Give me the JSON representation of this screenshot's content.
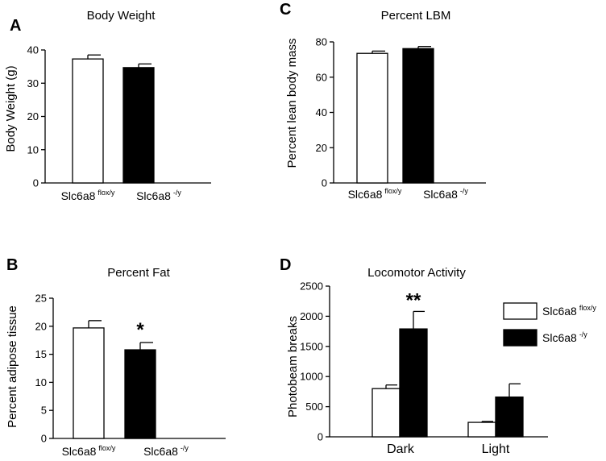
{
  "chart_data": [
    {
      "panel": "A",
      "type": "bar",
      "title": "Body Weight",
      "ylabel": "Body Weight (g)",
      "ylim": [
        0,
        40
      ],
      "yticks": [
        "0",
        "10",
        "20",
        "30",
        "40"
      ],
      "categories": [
        {
          "base": "Slc6a8",
          "sup": "flox/y"
        },
        {
          "base": "Slc6a8",
          "sup": "-/y"
        }
      ],
      "values": [
        37.3,
        34.7
      ],
      "errors": [
        1.2,
        1.1
      ],
      "fills": [
        "#ffffff",
        "#000000"
      ],
      "annotations": [
        "",
        ""
      ]
    },
    {
      "panel": "C",
      "type": "bar",
      "title": "Percent LBM",
      "ylabel": "Percent lean body mass",
      "ylim": [
        0,
        80
      ],
      "yticks": [
        "0",
        "20",
        "40",
        "60",
        "80"
      ],
      "categories": [
        {
          "base": "Slc6a8",
          "sup": "flox/y"
        },
        {
          "base": "Slc6a8",
          "sup": "-/y"
        }
      ],
      "values": [
        73.5,
        76.2
      ],
      "errors": [
        1.3,
        1.2
      ],
      "fills": [
        "#ffffff",
        "#000000"
      ],
      "annotations": [
        "",
        ""
      ]
    },
    {
      "panel": "B",
      "type": "bar",
      "title": "Percent Fat",
      "ylabel": "Percent adipose tissue",
      "ylim": [
        0,
        25
      ],
      "yticks": [
        "0",
        "5",
        "10",
        "15",
        "20",
        "25"
      ],
      "categories": [
        {
          "base": "Slc6a8",
          "sup": "flox/y"
        },
        {
          "base": "Slc6a8",
          "sup": "-/y"
        }
      ],
      "values": [
        19.7,
        15.8
      ],
      "errors": [
        1.3,
        1.3
      ],
      "fills": [
        "#ffffff",
        "#000000"
      ],
      "annotations": [
        "",
        "*"
      ]
    },
    {
      "panel": "D",
      "type": "bar",
      "title": "Locomotor Activity",
      "ylabel": "Photobeam breaks",
      "ylim": [
        0,
        2500
      ],
      "yticks": [
        "0",
        "500",
        "1000",
        "1500",
        "2000",
        "2500"
      ],
      "categories": [
        "Dark",
        "Light"
      ],
      "series": [
        {
          "name": "Slc6a8",
          "sup": "flox/y",
          "fill": "#ffffff",
          "values": [
            800,
            240
          ],
          "errors": [
            60,
            15
          ]
        },
        {
          "name": "Slc6a8",
          "sup": "-/y",
          "fill": "#000000",
          "values": [
            1790,
            660
          ],
          "errors": [
            290,
            220
          ]
        }
      ],
      "annotations": [
        "**",
        ""
      ],
      "legend": "top-right"
    }
  ]
}
